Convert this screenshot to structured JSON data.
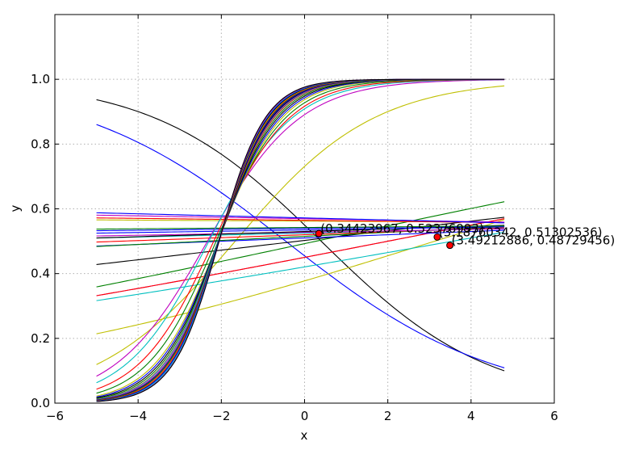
{
  "chart_data": {
    "type": "line",
    "title": "",
    "xlabel": "x",
    "ylabel": "y",
    "xlim": [
      -6,
      6
    ],
    "ylim": [
      0.0,
      1.2
    ],
    "xticks": [
      "−6",
      "−4",
      "−2",
      "0",
      "2",
      "4",
      "6"
    ],
    "yticks": [
      "0.0",
      "0.2",
      "0.4",
      "0.6",
      "0.8",
      "1.0"
    ],
    "grid": true,
    "legend": "none",
    "x_range": [
      -5.0,
      4.8
    ],
    "series_function": "sigmoid(a*x + b)",
    "series": [
      {
        "color": "#000000",
        "a": -0.5,
        "b": 0.2
      },
      {
        "color": "#0000ff",
        "a": -0.4,
        "b": -0.181
      },
      {
        "color": "#bfbf00",
        "a": 0.16,
        "b": -0.5
      },
      {
        "color": "#bfbf00",
        "a": 0.6,
        "b": 1.0
      },
      {
        "color": "#00bfbf",
        "a": 0.09,
        "b": -0.32
      },
      {
        "color": "#bf00bf",
        "a": 0.1,
        "b": -0.2
      },
      {
        "color": "#ff0000",
        "a": 0.1,
        "b": -0.2
      },
      {
        "color": "#008000",
        "a": 0.11,
        "b": -0.03
      },
      {
        "color": "#000000",
        "a": 0.06,
        "b": 0.01
      },
      {
        "color": "#0000ff",
        "a": 0.02,
        "b": 0.04
      },
      {
        "color": "#008000",
        "a": 0.025,
        "b": 0.06
      },
      {
        "color": "#ff0000",
        "a": 0.018,
        "b": 0.08
      },
      {
        "color": "#00bfbf",
        "a": 0.012,
        "b": 0.1
      },
      {
        "color": "#bf00bf",
        "a": 0.009,
        "b": 0.11
      },
      {
        "color": "#000000",
        "a": 0.016,
        "b": 0.12
      },
      {
        "color": "#0000ff",
        "a": 0.008,
        "b": 0.14
      },
      {
        "color": "#0000ff",
        "a": 0.006,
        "b": 0.16
      },
      {
        "color": "#008000",
        "a": 0.004,
        "b": 0.17
      },
      {
        "color": "#bfbf00",
        "a": -0.003,
        "b": 0.25
      },
      {
        "color": "#ff0000",
        "a": -0.006,
        "b": 0.26
      },
      {
        "color": "#bf00bf",
        "a": -0.009,
        "b": 0.28
      },
      {
        "color": "#0000ff",
        "a": -0.013,
        "b": 0.29
      },
      {
        "color": "#bf00bf",
        "a": 0.9,
        "b": 2.1
      },
      {
        "color": "#00bfbf",
        "a": 1.0,
        "b": 2.3
      },
      {
        "color": "#ff0000",
        "a": 1.1,
        "b": 2.4
      },
      {
        "color": "#008000",
        "a": 1.2,
        "b": 2.55
      },
      {
        "color": "#bfbf00",
        "a": 1.3,
        "b": 2.7
      },
      {
        "color": "#0000ff",
        "a": 1.35,
        "b": 2.8
      },
      {
        "color": "#000000",
        "a": 1.4,
        "b": 2.9
      },
      {
        "color": "#008000",
        "a": 1.45,
        "b": 3.0
      },
      {
        "color": "#ff0000",
        "a": 1.5,
        "b": 3.1
      },
      {
        "color": "#00bfbf",
        "a": 1.52,
        "b": 3.15
      },
      {
        "color": "#bf00bf",
        "a": 1.55,
        "b": 3.2
      },
      {
        "color": "#000000",
        "a": 1.58,
        "b": 3.25
      },
      {
        "color": "#0000ff",
        "a": 1.6,
        "b": 3.3
      },
      {
        "color": "#008000",
        "a": 1.62,
        "b": 3.35
      },
      {
        "color": "#ff0000",
        "a": 1.65,
        "b": 3.4
      },
      {
        "color": "#bfbf00",
        "a": 1.68,
        "b": 3.45
      },
      {
        "color": "#000000",
        "a": 1.7,
        "b": 3.5
      },
      {
        "color": "#0000ff",
        "a": 1.72,
        "b": 3.55
      },
      {
        "color": "#00bfbf",
        "a": 1.75,
        "b": 3.6
      },
      {
        "color": "#bf00bf",
        "a": 1.78,
        "b": 3.65
      },
      {
        "color": "#000000",
        "a": 1.8,
        "b": 3.7
      }
    ],
    "points": [
      {
        "x": 0.34423967,
        "y": 0.52376993,
        "label": "(0.34423967, 0.52376993)"
      },
      {
        "x": 3.18760342,
        "y": 0.51302536,
        "label": "(3.18760342, 0.51302536)"
      },
      {
        "x": 3.49212886,
        "y": 0.48729456,
        "label": "(3.49212886, 0.48729456)"
      }
    ],
    "point_color": "#ff0000"
  }
}
